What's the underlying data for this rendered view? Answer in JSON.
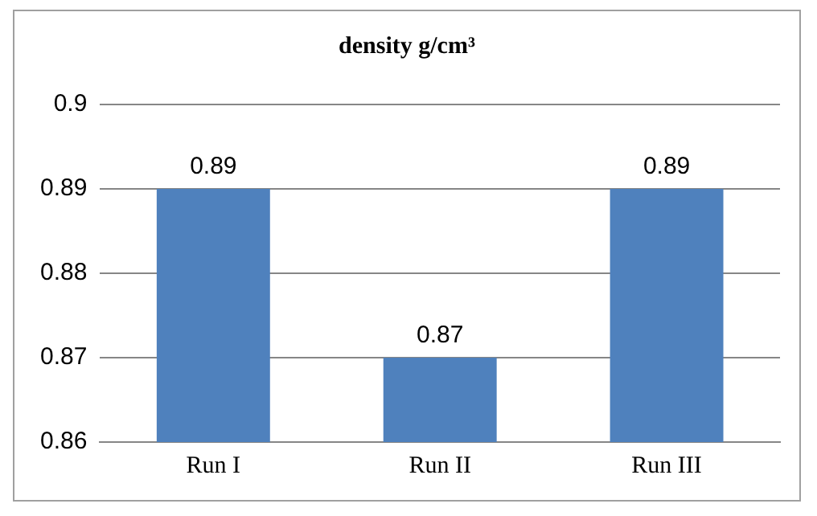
{
  "chart_data": {
    "type": "bar",
    "title": "density g/cm³",
    "categories": [
      "Run I",
      "Run II",
      "Run III"
    ],
    "values": [
      0.89,
      0.87,
      0.89
    ],
    "color": "#4f81bd",
    "ylim": [
      0.86,
      0.9
    ],
    "yticks": [
      0.86,
      0.87,
      0.88,
      0.89,
      0.9
    ],
    "grid": "y",
    "data_labels": true
  }
}
